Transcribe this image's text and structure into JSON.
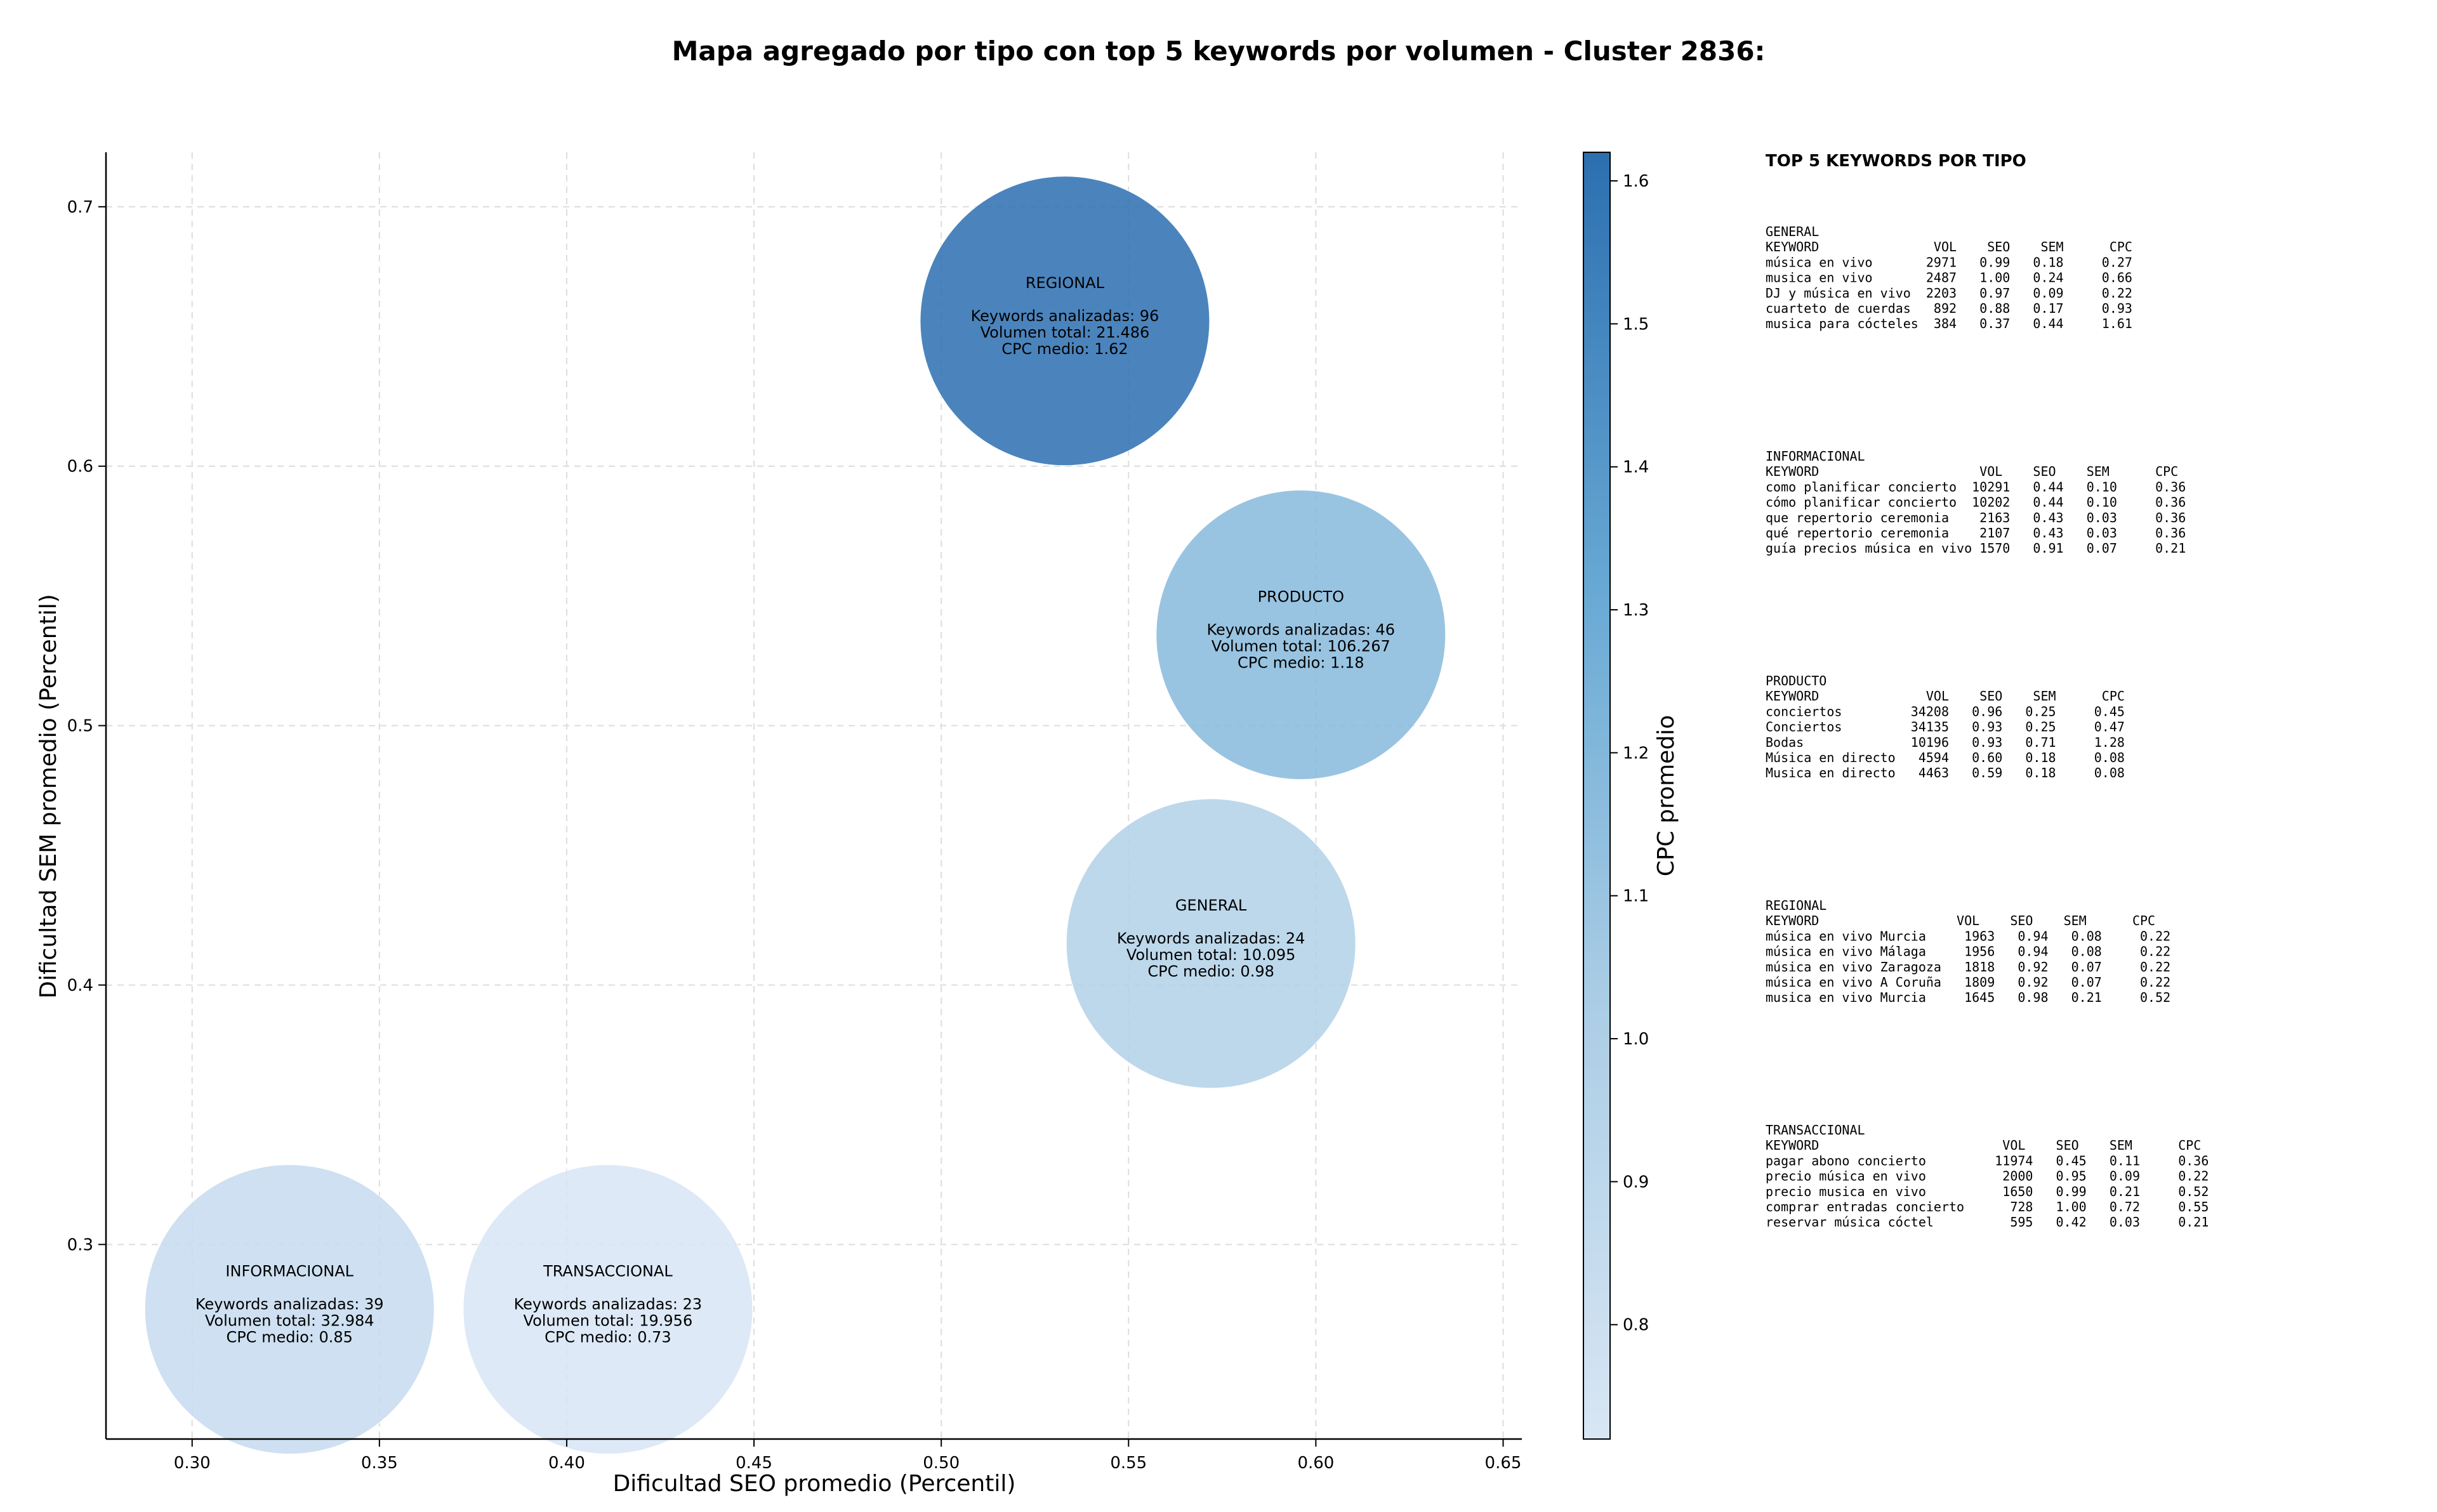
{
  "chart_data": {
    "type": "scatter",
    "title": "Mapa agregado por tipo con top 5 keywords por volumen - Cluster 2836:",
    "xlabel": "Dificultad SEO promedio (Percentil)",
    "ylabel": "Dificultad SEM promedio (Percentil)",
    "xlim": [
      0.277,
      0.655
    ],
    "ylim": [
      0.225,
      0.721
    ],
    "xticks": [
      "0.30",
      "0.35",
      "0.40",
      "0.45",
      "0.50",
      "0.55",
      "0.60",
      "0.65"
    ],
    "yticks": [
      "0.3",
      "0.4",
      "0.5",
      "0.6",
      "0.7"
    ],
    "grid": true,
    "colorbar": {
      "label": "CPC promedio",
      "range": [
        0.72,
        1.62
      ],
      "ticks": [
        "0.8",
        "0.9",
        "1.0",
        "1.1",
        "1.2",
        "1.3",
        "1.4",
        "1.5",
        "1.6"
      ]
    },
    "points": [
      {
        "label": "INFORMACIONAL",
        "x": 0.326,
        "y": 0.275,
        "keywords_line": "Keywords analizadas: 39",
        "volume_line": "Volumen total: 32.984",
        "cpc_line": "CPC medio: 0.85",
        "cpc": 0.85
      },
      {
        "label": "TRANSACCIONAL",
        "x": 0.411,
        "y": 0.275,
        "keywords_line": "Keywords analizadas: 23",
        "volume_line": "Volumen total: 19.956",
        "cpc_line": "CPC medio: 0.73",
        "cpc": 0.73
      },
      {
        "label": "REGIONAL",
        "x": 0.533,
        "y": 0.656,
        "keywords_line": "Keywords analizadas: 96",
        "volume_line": "Volumen total: 21.486",
        "cpc_line": "CPC medio: 1.62",
        "cpc": 1.62
      },
      {
        "label": "PRODUCTO",
        "x": 0.596,
        "y": 0.535,
        "keywords_line": "Keywords analizadas: 46",
        "volume_line": "Volumen total: 106.267",
        "cpc_line": "CPC medio: 1.18",
        "cpc": 1.18
      },
      {
        "label": "GENERAL",
        "x": 0.572,
        "y": 0.416,
        "keywords_line": "Keywords analizadas: 24",
        "volume_line": "Volumen total: 10.095",
        "cpc_line": "CPC medio: 0.98",
        "cpc": 0.98
      }
    ]
  },
  "side_panel": {
    "title": "TOP 5 KEYWORDS POR TIPO",
    "sections": [
      {
        "name": "GENERAL",
        "header": "KEYWORD               VOL    SEO    SEM      CPC",
        "rows": [
          "música en vivo       2971   0.99   0.18     0.27",
          "musica en vivo       2487   1.00   0.24     0.66",
          "DJ y música en vivo  2203   0.97   0.09     0.22",
          "cuarteto de cuerdas   892   0.88   0.17     0.93",
          "musica para cócteles  384   0.37   0.44     1.61"
        ]
      },
      {
        "name": "INFORMACIONAL",
        "header": "KEYWORD                     VOL    SEO    SEM      CPC",
        "rows": [
          "como planificar concierto  10291   0.44   0.10     0.36",
          "cómo planificar concierto  10202   0.44   0.10     0.36",
          "que repertorio ceremonia    2163   0.43   0.03     0.36",
          "qué repertorio ceremonia    2107   0.43   0.03     0.36",
          "guía precios música en vivo 1570   0.91   0.07     0.21"
        ]
      },
      {
        "name": "PRODUCTO",
        "header": "KEYWORD              VOL    SEO    SEM      CPC",
        "rows": [
          "conciertos         34208   0.96   0.25     0.45",
          "Conciertos         34135   0.93   0.25     0.47",
          "Bodas              10196   0.93   0.71     1.28",
          "Música en directo   4594   0.60   0.18     0.08",
          "Musica en directo   4463   0.59   0.18     0.08"
        ]
      },
      {
        "name": "REGIONAL",
        "header": "KEYWORD                  VOL    SEO    SEM      CPC",
        "rows": [
          "música en vivo Murcia     1963   0.94   0.08     0.22",
          "música en vivo Málaga     1956   0.94   0.08     0.22",
          "música en vivo Zaragoza   1818   0.92   0.07     0.22",
          "música en vivo A Coruña   1809   0.92   0.07     0.22",
          "musica en vivo Murcia     1645   0.98   0.21     0.52"
        ]
      },
      {
        "name": "TRANSACCIONAL",
        "header": "KEYWORD                        VOL    SEO    SEM      CPC",
        "rows": [
          "pagar abono concierto         11974   0.45   0.11     0.36",
          "precio música en vivo          2000   0.95   0.09     0.22",
          "precio musica en vivo          1650   0.99   0.21     0.52",
          "comprar entradas concierto      728   1.00   0.72     0.55",
          "reservar música cóctel          595   0.42   0.03     0.21"
        ]
      }
    ]
  },
  "colors": {
    "grid": "#dddddd",
    "axis": "#000000",
    "cmap_low": "#d3e4f3",
    "cmap_high": "#2b6fb0"
  }
}
